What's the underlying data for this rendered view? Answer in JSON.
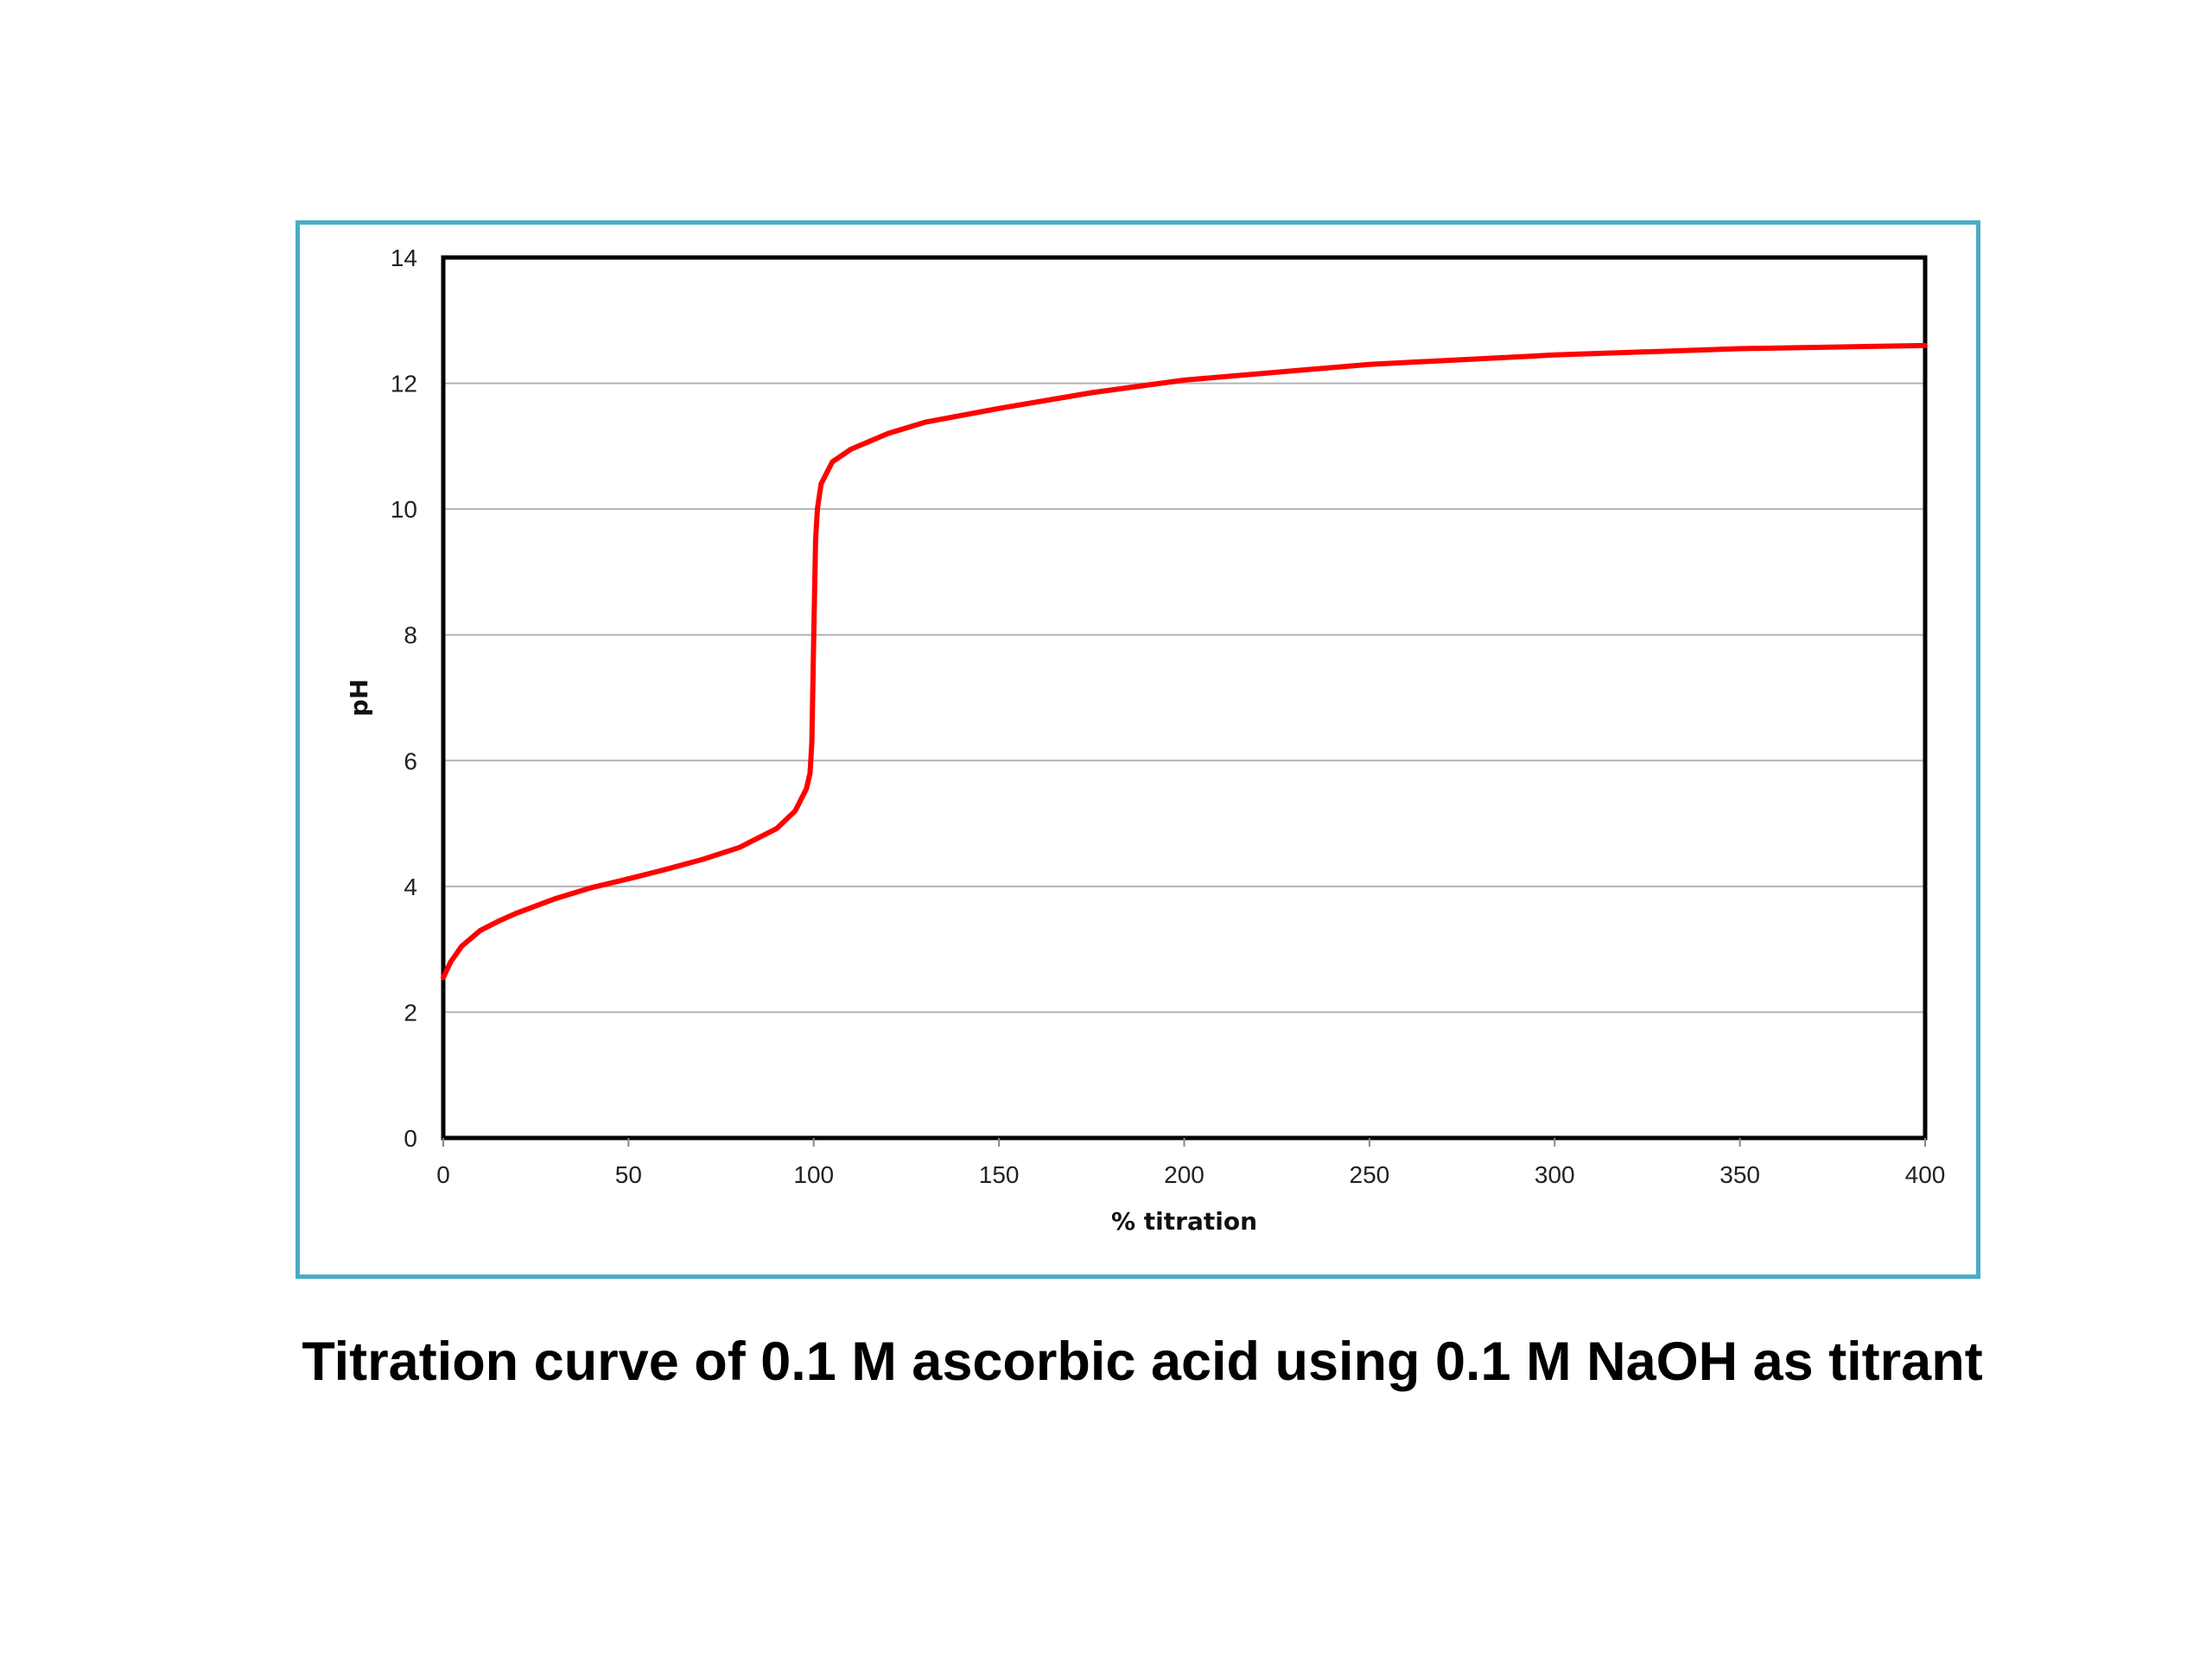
{
  "caption": "Titration curve of 0.1 M ascorbic acid using 0.1 M NaOH as titrant",
  "chart_data": {
    "type": "line",
    "xlabel": "% titration",
    "ylabel": "pH",
    "xlim": [
      0,
      400
    ],
    "ylim": [
      0,
      14
    ],
    "x_ticks": [
      0,
      50,
      100,
      150,
      200,
      250,
      300,
      350,
      400
    ],
    "y_ticks": [
      0,
      2,
      4,
      6,
      8,
      10,
      12,
      14
    ],
    "grid": "horizontal",
    "legend": "none",
    "colors": {
      "line": "#ff0000",
      "frame": "#4bacc6",
      "grid": "#b3b3b3",
      "axis": "#000000"
    },
    "series": [
      {
        "x": [
          0,
          2,
          5,
          10,
          15,
          20,
          30,
          40,
          50,
          60,
          70,
          80,
          90,
          95,
          98,
          99,
          99.5,
          100,
          100.5,
          101,
          102,
          105,
          110,
          120,
          130,
          150,
          175,
          200,
          250,
          300,
          350,
          400
        ],
        "values": [
          2.55,
          2.8,
          3.05,
          3.3,
          3.45,
          3.58,
          3.8,
          3.98,
          4.12,
          4.27,
          4.43,
          4.62,
          4.92,
          5.2,
          5.55,
          5.8,
          6.3,
          8.0,
          9.5,
          10.0,
          10.4,
          10.75,
          10.95,
          11.2,
          11.38,
          11.6,
          11.85,
          12.05,
          12.3,
          12.45,
          12.55,
          12.6
        ]
      }
    ]
  }
}
